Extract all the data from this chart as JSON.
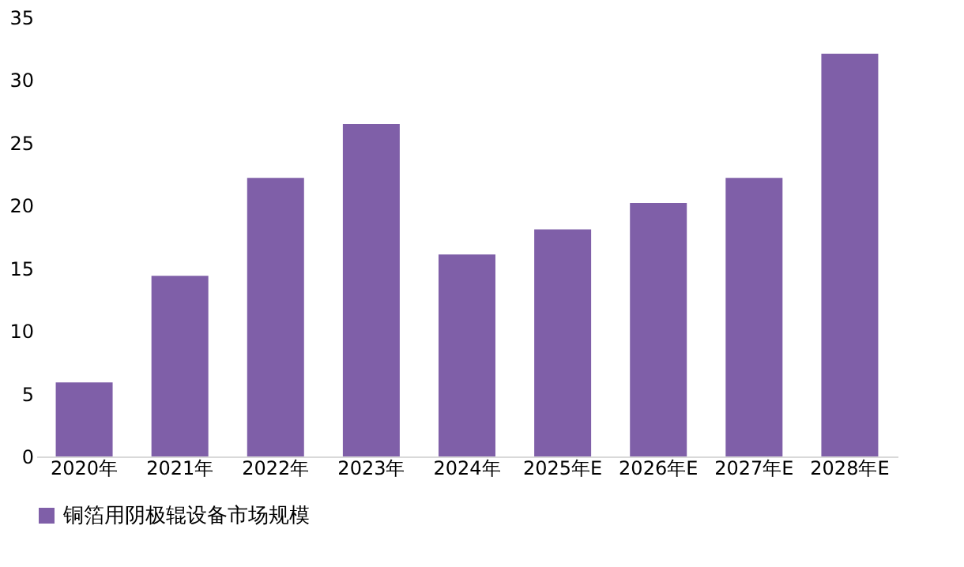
{
  "chart_data": {
    "type": "bar",
    "categories": [
      "2020年",
      "2021年",
      "2022年",
      "2023年",
      "2024年",
      "2025年E",
      "2026年E",
      "2027年E",
      "2028年E"
    ],
    "series": [
      {
        "name": "铜箔用阴极辊设备市场规模",
        "color": "#7f5fa8",
        "values": [
          5.9,
          14.4,
          22.2,
          26.5,
          16.1,
          18.1,
          20.2,
          22.2,
          32.1
        ]
      }
    ],
    "ylim": [
      0,
      35
    ],
    "yticks": [
      0,
      5,
      10,
      15,
      20,
      25,
      30,
      35
    ],
    "grid": false,
    "legend": "bottom"
  }
}
